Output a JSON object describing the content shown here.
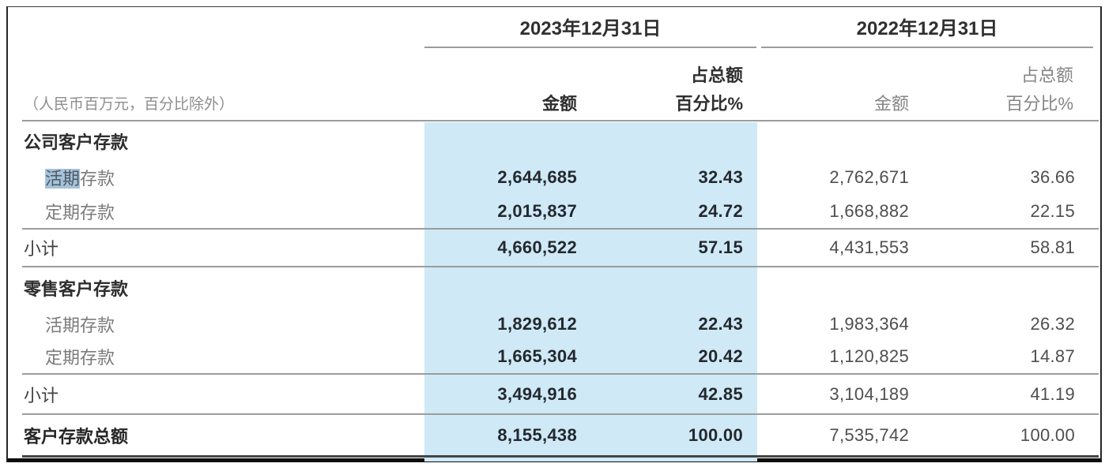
{
  "meta": {
    "note": "（人民币百万元，百分比除外）"
  },
  "header": {
    "period_2023": "2023年12月31日",
    "period_2022": "2022年12月31日",
    "col_amount": "金额",
    "col_pct_line1": "占总额",
    "col_pct_line2": "百分比%"
  },
  "colors": {
    "current_year_band": "#cfe9f7",
    "text_selection_highlight": "#a6c2da",
    "rule_gray": "#9c9c9c",
    "rule_heavy": "#454545"
  },
  "rows": [
    {
      "type": "section",
      "label": "公司客户存款"
    },
    {
      "type": "item",
      "label_highlight": "活期",
      "label_tail": "存款",
      "amount_2023": "2,644,685",
      "pct_2023": "32.43",
      "amount_2022": "2,762,671",
      "pct_2022": "36.66"
    },
    {
      "type": "item",
      "label": "定期存款",
      "amount_2023": "2,015,837",
      "pct_2023": "24.72",
      "amount_2022": "1,668,882",
      "pct_2022": "22.15"
    },
    {
      "type": "subtotal",
      "label": "小计",
      "amount_2023": "4,660,522",
      "pct_2023": "57.15",
      "amount_2022": "4,431,553",
      "pct_2022": "58.81"
    },
    {
      "type": "section",
      "label": "零售客户存款"
    },
    {
      "type": "item",
      "label": "活期存款",
      "amount_2023": "1,829,612",
      "pct_2023": "22.43",
      "amount_2022": "1,983,364",
      "pct_2022": "26.32"
    },
    {
      "type": "item",
      "label": "定期存款",
      "amount_2023": "1,665,304",
      "pct_2023": "20.42",
      "amount_2022": "1,120,825",
      "pct_2022": "14.87"
    },
    {
      "type": "subtotal",
      "label": "小计",
      "amount_2023": "3,494,916",
      "pct_2023": "42.85",
      "amount_2022": "3,104,189",
      "pct_2022": "41.19"
    },
    {
      "type": "total",
      "label": "客户存款总额",
      "amount_2023": "8,155,438",
      "pct_2023": "100.00",
      "amount_2022": "7,535,742",
      "pct_2022": "100.00"
    }
  ]
}
